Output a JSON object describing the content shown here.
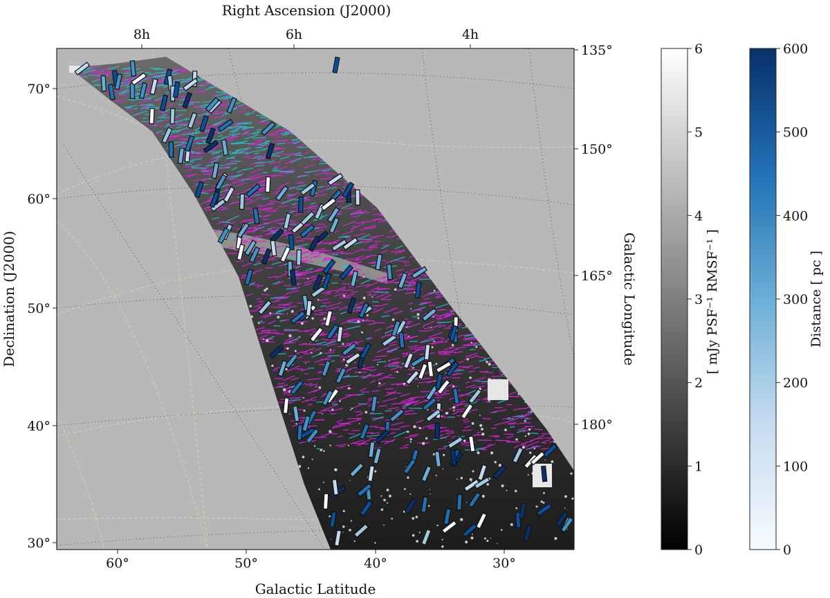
{
  "chart_data": [
    {
      "type": "heatmap",
      "title": "",
      "panel": "sky-map",
      "axes": {
        "top": {
          "label": "Right Ascension (J2000)",
          "ticks": [
            "8h",
            "6h",
            "4h"
          ]
        },
        "left": {
          "label": "Declination (J2000)",
          "ticks": [
            "70°",
            "60°",
            "50°",
            "40°",
            "30°"
          ]
        },
        "right": {
          "label": "Galactic Longitude",
          "ticks": [
            "135°",
            "150°",
            "165°",
            "180°"
          ]
        },
        "bottom": {
          "label": "Galactic Latitude",
          "ticks": [
            "60°",
            "50°",
            "40°",
            "30°"
          ]
        }
      },
      "grid": true,
      "background_color": "#b8b8b8",
      "overlays": [
        {
          "name": "polarized filaments",
          "color": "#e020e0"
        },
        {
          "name": "polarized filaments (cyan)",
          "color": "#22c4c8"
        },
        {
          "name": "stellar polarization vectors",
          "colored_by": "Distance [pc]"
        }
      ]
    },
    {
      "type": "colorbar",
      "label": "[ mJy PSF⁻¹ RMSF⁻¹ ]",
      "range": [
        0,
        6
      ],
      "ticks": [
        "0",
        "1",
        "2",
        "3",
        "4",
        "5",
        "6"
      ],
      "colormap": "gray",
      "colors": [
        "#000000",
        "#ffffff"
      ]
    },
    {
      "type": "colorbar",
      "label": "Distance [ pc ]",
      "range": [
        0,
        600
      ],
      "ticks": [
        "0",
        "100",
        "200",
        "300",
        "400",
        "500",
        "600"
      ],
      "colormap": "Blues",
      "colors": [
        "#f7fbff",
        "#c6dbef",
        "#6baed6",
        "#2171b5",
        "#08306b"
      ]
    }
  ]
}
